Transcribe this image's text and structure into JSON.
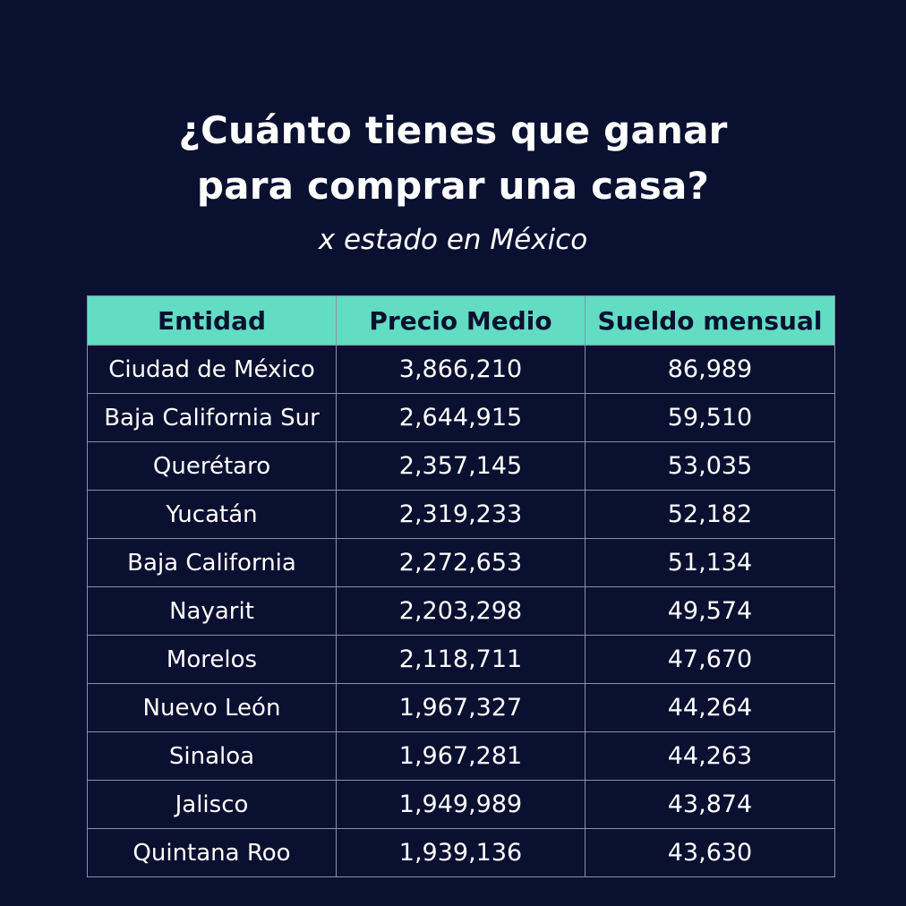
{
  "title_line1": "¿Cuánto tienes que ganar",
  "title_line2": "para comprar una casa?",
  "subtitle": "x estado en México",
  "colors": {
    "background": "#0a1030",
    "header_fill": "#62dcc2",
    "header_text": "#0a1030",
    "text": "#ffffff",
    "grid": "#8a90a8"
  },
  "chart_data": {
    "type": "table",
    "columns": [
      "Entidad",
      "Precio Medio",
      "Sueldo mensual"
    ],
    "rows": [
      [
        "Ciudad de México",
        "3,866,210",
        "86,989"
      ],
      [
        "Baja California Sur",
        "2,644,915",
        "59,510"
      ],
      [
        "Querétaro",
        "2,357,145",
        "53,035"
      ],
      [
        "Yucatán",
        "2,319,233",
        "52,182"
      ],
      [
        "Baja California",
        "2,272,653",
        "51,134"
      ],
      [
        "Nayarit",
        "2,203,298",
        "49,574"
      ],
      [
        "Morelos",
        "2,118,711",
        "47,670"
      ],
      [
        "Nuevo León",
        "1,967,327",
        "44,264"
      ],
      [
        "Sinaloa",
        "1,967,281",
        "44,263"
      ],
      [
        "Jalisco",
        "1,949,989",
        "43,874"
      ],
      [
        "Quintana Roo",
        "1,939,136",
        "43,630"
      ]
    ]
  }
}
